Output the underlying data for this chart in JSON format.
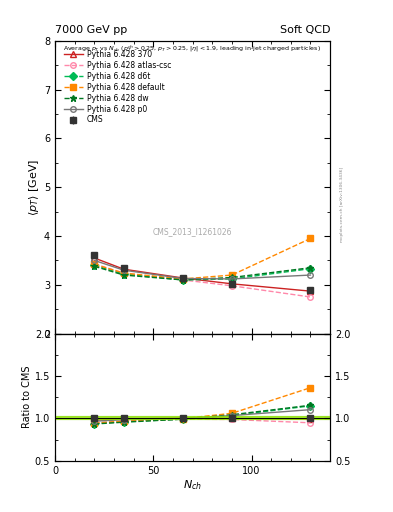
{
  "title_left": "7000 GeV pp",
  "title_right": "Soft QCD",
  "ylabel_main": "$\\langle p_T \\rangle$ [GeV]",
  "ylabel_ratio": "Ratio to CMS",
  "xlabel": "$N_{ch}$",
  "description": "Average $p_T$ vs $N_{ch}$ ($p_T^{ch}>0.25$, $p_T>0.25$, $|\\eta|<1.9$, leading in-jet charged particles)",
  "watermark": "CMS_2013_I1261026",
  "mcplots_label": "mcplots.cern.ch [arXiv:1306.3436]",
  "ylim_main": [
    2.0,
    8.0
  ],
  "ylim_ratio": [
    0.5,
    2.0
  ],
  "xlim": [
    0,
    140
  ],
  "nch_cms": [
    20,
    35,
    65,
    90,
    130
  ],
  "pt_cms": [
    3.62,
    3.35,
    3.13,
    3.02,
    2.9
  ],
  "pt_cms_err": [
    0.05,
    0.04,
    0.03,
    0.04,
    0.06
  ],
  "nch_370": [
    20,
    35,
    65,
    90,
    130
  ],
  "pt_370": [
    3.55,
    3.32,
    3.14,
    3.02,
    2.87
  ],
  "nch_atlas": [
    20,
    35,
    65,
    90,
    130
  ],
  "pt_atlas": [
    3.43,
    3.24,
    3.1,
    2.98,
    2.75
  ],
  "nch_d6t": [
    20,
    35,
    65,
    90,
    130
  ],
  "pt_d6t": [
    3.4,
    3.22,
    3.1,
    3.12,
    3.33
  ],
  "nch_default": [
    20,
    35,
    65,
    90,
    130
  ],
  "pt_default": [
    3.42,
    3.24,
    3.12,
    3.2,
    3.95
  ],
  "nch_dw": [
    20,
    35,
    65,
    90,
    130
  ],
  "pt_dw": [
    3.38,
    3.2,
    3.1,
    3.15,
    3.35
  ],
  "nch_p0": [
    20,
    35,
    65,
    90,
    130
  ],
  "pt_p0": [
    3.5,
    3.3,
    3.13,
    3.12,
    3.2
  ],
  "color_cms": "#333333",
  "color_370": "#cc2222",
  "color_atlas": "#ff88aa",
  "color_d6t": "#00bb55",
  "color_default": "#ff8800",
  "color_dw": "#007722",
  "color_p0": "#777777",
  "ratio_370": [
    0.98,
    0.991,
    1.003,
    1.0,
    0.99
  ],
  "ratio_atlas": [
    0.947,
    0.967,
    0.991,
    0.987,
    0.948
  ],
  "ratio_d6t": [
    0.939,
    0.961,
    0.991,
    1.033,
    1.148
  ],
  "ratio_default": [
    0.945,
    0.967,
    0.997,
    1.06,
    1.362
  ],
  "ratio_dw": [
    0.934,
    0.955,
    0.991,
    1.043,
    1.155
  ],
  "ratio_p0": [
    0.967,
    0.985,
    1.0,
    1.033,
    1.103
  ],
  "xticks": [
    0,
    50,
    100
  ],
  "yticks_main": [
    2,
    3,
    4,
    5,
    6,
    7,
    8
  ],
  "yticks_ratio": [
    0.5,
    1.0,
    1.5,
    2.0
  ]
}
